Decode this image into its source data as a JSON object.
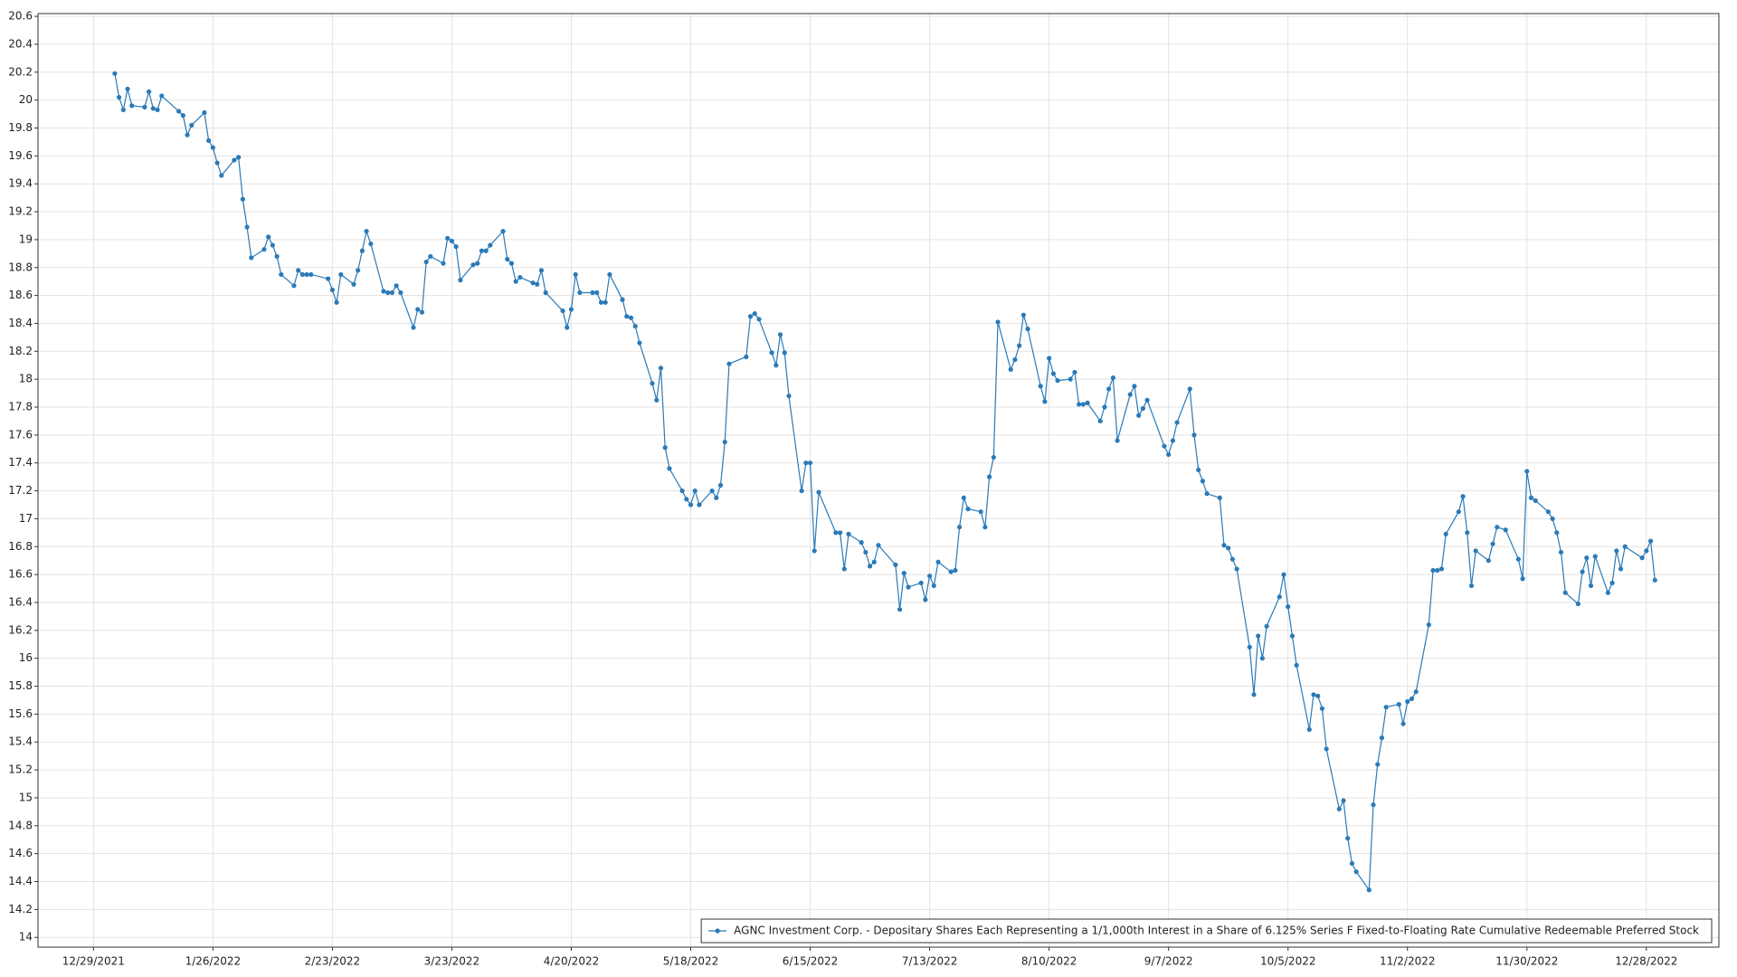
{
  "chart_data": {
    "type": "line",
    "x": [
      "1/3/2022",
      "1/4/2022",
      "1/5/2022",
      "1/6/2022",
      "1/7/2022",
      "1/10/2022",
      "1/11/2022",
      "1/12/2022",
      "1/13/2022",
      "1/14/2022",
      "1/18/2022",
      "1/19/2022",
      "1/20/2022",
      "1/21/2022",
      "1/24/2022",
      "1/25/2022",
      "1/26/2022",
      "1/27/2022",
      "1/28/2022",
      "1/31/2022",
      "2/1/2022",
      "2/2/2022",
      "2/3/2022",
      "2/4/2022",
      "2/7/2022",
      "2/8/2022",
      "2/9/2022",
      "2/10/2022",
      "2/11/2022",
      "2/14/2022",
      "2/15/2022",
      "2/16/2022",
      "2/17/2022",
      "2/18/2022",
      "2/22/2022",
      "2/23/2022",
      "2/24/2022",
      "2/25/2022",
      "2/28/2022",
      "3/1/2022",
      "3/2/2022",
      "3/3/2022",
      "3/4/2022",
      "3/7/2022",
      "3/8/2022",
      "3/9/2022",
      "3/10/2022",
      "3/11/2022",
      "3/14/2022",
      "3/15/2022",
      "3/16/2022",
      "3/17/2022",
      "3/18/2022",
      "3/21/2022",
      "3/22/2022",
      "3/23/2022",
      "3/24/2022",
      "3/25/2022",
      "3/28/2022",
      "3/29/2022",
      "3/30/2022",
      "3/31/2022",
      "4/1/2022",
      "4/4/2022",
      "4/5/2022",
      "4/6/2022",
      "4/7/2022",
      "4/8/2022",
      "4/11/2022",
      "4/12/2022",
      "4/13/2022",
      "4/14/2022",
      "4/18/2022",
      "4/19/2022",
      "4/20/2022",
      "4/21/2022",
      "4/22/2022",
      "4/25/2022",
      "4/26/2022",
      "4/27/2022",
      "4/28/2022",
      "4/29/2022",
      "5/2/2022",
      "5/3/2022",
      "5/4/2022",
      "5/5/2022",
      "5/6/2022",
      "5/9/2022",
      "5/10/2022",
      "5/11/2022",
      "5/12/2022",
      "5/13/2022",
      "5/16/2022",
      "5/17/2022",
      "5/18/2022",
      "5/19/2022",
      "5/20/2022",
      "5/23/2022",
      "5/24/2022",
      "5/25/2022",
      "5/26/2022",
      "5/27/2022",
      "5/31/2022",
      "6/1/2022",
      "6/2/2022",
      "6/3/2022",
      "6/6/2022",
      "6/7/2022",
      "6/8/2022",
      "6/9/2022",
      "6/10/2022",
      "6/13/2022",
      "6/14/2022",
      "6/15/2022",
      "6/16/2022",
      "6/17/2022",
      "6/21/2022",
      "6/22/2022",
      "6/23/2022",
      "6/24/2022",
      "6/27/2022",
      "6/28/2022",
      "6/29/2022",
      "6/30/2022",
      "7/1/2022",
      "7/5/2022",
      "7/6/2022",
      "7/7/2022",
      "7/8/2022",
      "7/11/2022",
      "7/12/2022",
      "7/13/2022",
      "7/14/2022",
      "7/15/2022",
      "7/18/2022",
      "7/19/2022",
      "7/20/2022",
      "7/21/2022",
      "7/22/2022",
      "7/25/2022",
      "7/26/2022",
      "7/27/2022",
      "7/28/2022",
      "7/29/2022",
      "8/1/2022",
      "8/2/2022",
      "8/3/2022",
      "8/4/2022",
      "8/5/2022",
      "8/8/2022",
      "8/9/2022",
      "8/10/2022",
      "8/11/2022",
      "8/12/2022",
      "8/15/2022",
      "8/16/2022",
      "8/17/2022",
      "8/18/2022",
      "8/19/2022",
      "8/22/2022",
      "8/23/2022",
      "8/24/2022",
      "8/25/2022",
      "8/26/2022",
      "8/29/2022",
      "8/30/2022",
      "8/31/2022",
      "9/1/2022",
      "9/2/2022",
      "9/6/2022",
      "9/7/2022",
      "9/8/2022",
      "9/9/2022",
      "9/12/2022",
      "9/13/2022",
      "9/14/2022",
      "9/15/2022",
      "9/16/2022",
      "9/19/2022",
      "9/20/2022",
      "9/21/2022",
      "9/22/2022",
      "9/23/2022",
      "9/26/2022",
      "9/27/2022",
      "9/28/2022",
      "9/29/2022",
      "9/30/2022",
      "10/3/2022",
      "10/4/2022",
      "10/5/2022",
      "10/6/2022",
      "10/7/2022",
      "10/10/2022",
      "10/11/2022",
      "10/12/2022",
      "10/13/2022",
      "10/14/2022",
      "10/17/2022",
      "10/18/2022",
      "10/19/2022",
      "10/20/2022",
      "10/21/2022",
      "10/24/2022",
      "10/25/2022",
      "10/26/2022",
      "10/27/2022",
      "10/28/2022",
      "10/31/2022",
      "11/1/2022",
      "11/2/2022",
      "11/3/2022",
      "11/4/2022",
      "11/7/2022",
      "11/8/2022",
      "11/9/2022",
      "11/10/2022",
      "11/11/2022",
      "11/14/2022",
      "11/15/2022",
      "11/16/2022",
      "11/17/2022",
      "11/18/2022",
      "11/21/2022",
      "11/22/2022",
      "11/23/2022",
      "11/25/2022",
      "11/28/2022",
      "11/29/2022",
      "11/30/2022",
      "12/1/2022",
      "12/2/2022",
      "12/5/2022",
      "12/6/2022",
      "12/7/2022",
      "12/8/2022",
      "12/9/2022",
      "12/12/2022",
      "12/13/2022",
      "12/14/2022",
      "12/15/2022",
      "12/16/2022",
      "12/19/2022",
      "12/20/2022",
      "12/21/2022",
      "12/22/2022",
      "12/23/2022",
      "12/27/2022",
      "12/28/2022",
      "12/29/2022",
      "12/30/2022"
    ],
    "series": [
      {
        "name": "AGNC Investment Corp. - Depositary Shares Each Representing a 1/1,000th Interest in a Share of 6.125% Series F Fixed-to-Floating Rate Cumulative Redeemable Preferred Stock",
        "color": "#2a7ab8",
        "values": [
          20.19,
          20.02,
          19.93,
          20.08,
          19.96,
          19.95,
          20.06,
          19.94,
          19.93,
          20.03,
          19.92,
          19.89,
          19.75,
          19.82,
          19.91,
          19.71,
          19.66,
          19.55,
          19.46,
          19.57,
          19.59,
          19.29,
          19.09,
          18.87,
          18.93,
          19.02,
          18.96,
          18.88,
          18.75,
          18.67,
          18.78,
          18.75,
          18.75,
          18.75,
          18.72,
          18.64,
          18.55,
          18.75,
          18.68,
          18.78,
          18.92,
          19.06,
          18.97,
          18.63,
          18.62,
          18.62,
          18.67,
          18.62,
          18.37,
          18.5,
          18.48,
          18.84,
          18.88,
          18.83,
          19.01,
          18.99,
          18.95,
          18.71,
          18.82,
          18.83,
          18.92,
          18.92,
          18.96,
          19.06,
          18.86,
          18.83,
          18.7,
          18.73,
          18.69,
          18.68,
          18.78,
          18.62,
          18.49,
          18.37,
          18.5,
          18.75,
          18.62,
          18.62,
          18.62,
          18.55,
          18.55,
          18.75,
          18.57,
          18.45,
          18.44,
          18.38,
          18.26,
          17.97,
          17.85,
          18.08,
          17.51,
          17.36,
          17.2,
          17.14,
          17.1,
          17.2,
          17.1,
          17.2,
          17.15,
          17.24,
          17.55,
          18.11,
          18.16,
          18.45,
          18.47,
          18.43,
          18.19,
          18.1,
          18.32,
          18.19,
          17.88,
          17.2,
          17.4,
          17.4,
          16.77,
          17.19,
          16.9,
          16.9,
          16.64,
          16.89,
          16.83,
          16.76,
          16.66,
          16.69,
          16.81,
          16.67,
          16.35,
          16.61,
          16.51,
          16.54,
          16.42,
          16.59,
          16.52,
          16.69,
          16.62,
          16.63,
          16.94,
          17.15,
          17.07,
          17.05,
          16.94,
          17.3,
          17.44,
          18.41,
          18.07,
          18.14,
          18.24,
          18.46,
          18.36,
          17.95,
          17.84,
          18.15,
          18.04,
          17.99,
          18.0,
          18.05,
          17.82,
          17.82,
          17.83,
          17.7,
          17.8,
          17.93,
          18.01,
          17.56,
          17.89,
          17.95,
          17.74,
          17.79,
          17.85,
          17.52,
          17.46,
          17.56,
          17.69,
          17.93,
          17.6,
          17.35,
          17.27,
          17.18,
          17.15,
          16.81,
          16.79,
          16.71,
          16.64,
          16.08,
          15.74,
          16.16,
          16.0,
          16.23,
          16.44,
          16.6,
          16.37,
          16.16,
          15.95,
          15.49,
          15.74,
          15.73,
          15.64,
          15.35,
          14.92,
          14.98,
          14.71,
          14.53,
          14.47,
          14.34,
          14.95,
          15.24,
          15.43,
          15.65,
          15.67,
          15.53,
          15.69,
          15.71,
          15.76,
          16.24,
          16.63,
          16.63,
          16.64,
          16.89,
          17.05,
          17.16,
          16.9,
          16.52,
          16.77,
          16.7,
          16.82,
          16.94,
          16.92,
          16.71,
          16.57,
          17.34,
          17.15,
          17.13,
          17.05,
          17.0,
          16.9,
          16.76,
          16.47,
          16.39,
          16.62,
          16.72,
          16.52,
          16.73,
          16.47,
          16.54,
          16.77,
          16.64,
          16.8,
          16.72,
          16.77,
          16.84,
          16.56
        ]
      }
    ],
    "xlim": [
      "12/16/2021",
      "1/14/2023"
    ],
    "xticks": [
      "12/29/2021",
      "1/26/2022",
      "2/23/2022",
      "3/23/2022",
      "4/20/2022",
      "5/18/2022",
      "6/15/2022",
      "7/13/2022",
      "8/10/2022",
      "9/7/2022",
      "10/5/2022",
      "11/2/2022",
      "11/30/2022",
      "12/28/2022"
    ],
    "ylim": [
      13.93,
      20.62
    ],
    "yticks": [
      14,
      14.2,
      14.4,
      14.6,
      14.8,
      15,
      15.2,
      15.4,
      15.6,
      15.8,
      16,
      16.2,
      16.4,
      16.6,
      16.8,
      17,
      17.2,
      17.4,
      17.6,
      17.8,
      18,
      18.2,
      18.4,
      18.6,
      18.8,
      19,
      19.2,
      19.4,
      19.6,
      19.8,
      20,
      20.2,
      20.4,
      20.6
    ],
    "grid": true,
    "legend": "lower right"
  }
}
